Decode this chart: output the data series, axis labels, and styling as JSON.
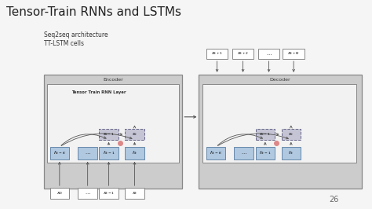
{
  "title": "Tensor-Train RNNs and LSTMs",
  "subtitle_line1": "Seq2seq architecture",
  "subtitle_line2": "TT-LSTM cells",
  "page_number": "26",
  "bg_color": "#f5f5f5",
  "title_fontsize": 11,
  "subtitle_fontsize": 5.5,
  "encoder_label": "Encoder",
  "decoder_label": "Decoder",
  "tt_rnn_label": "Tensor Train RNN Layer",
  "outer_box_color": "#c8c8c8",
  "inner_box_color": "#ebebeb",
  "h_box_color": "#b0c8e0",
  "s_box_color": "#c0c0d0",
  "x_box_color": "#ffffff",
  "dot_color": "#e08080",
  "enc_outer": [
    0.115,
    0.095,
    0.375,
    0.55
  ],
  "dec_outer": [
    0.535,
    0.095,
    0.44,
    0.55
  ],
  "enc_inner": [
    0.125,
    0.22,
    0.355,
    0.38
  ],
  "dec_inner": [
    0.545,
    0.22,
    0.415,
    0.38
  ]
}
